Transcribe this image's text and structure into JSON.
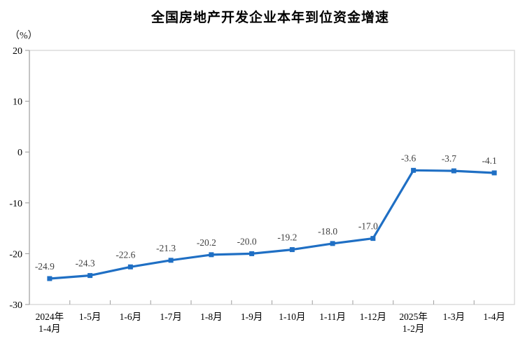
{
  "title": "全国房地产开发企业本年到位资金增速",
  "y_axis_unit": "（%）",
  "colors": {
    "line": "#1F6FC4",
    "marker": "#1F6FC4",
    "data_label": "#404040",
    "axis_text": "#000000",
    "axis_line": "#A6A6A6",
    "plot_border": "#D9D9D9"
  },
  "chart_data": {
    "type": "line",
    "title": "全国房地产开发企业本年到位资金增速",
    "ylabel": "（%）",
    "xlabel": "",
    "grid": false,
    "legend": "none",
    "ylim": [
      -30,
      20
    ],
    "yticks": [
      20,
      10,
      0,
      -10,
      -20,
      -30
    ],
    "categories": [
      [
        "2024年",
        "1-4月"
      ],
      [
        "1-5月"
      ],
      [
        "1-6月"
      ],
      [
        "1-7月"
      ],
      [
        "1-8月"
      ],
      [
        "1-9月"
      ],
      [
        "1-10月"
      ],
      [
        "1-11月"
      ],
      [
        "1-12月"
      ],
      [
        "2025年",
        "1-2月"
      ],
      [
        "1-3月"
      ],
      [
        "1-4月"
      ]
    ],
    "values": [
      -24.9,
      -24.3,
      -22.6,
      -21.3,
      -20.2,
      -20.0,
      -19.2,
      -18.0,
      -17.0,
      -3.6,
      -3.7,
      -4.1
    ],
    "data_labels": [
      "-24.9",
      "-24.3",
      "-22.6",
      "-21.3",
      "-20.2",
      "-20.0",
      "-19.2",
      "-18.0",
      "-17.0",
      "-3.6",
      "-3.7",
      "-4.1"
    ]
  }
}
